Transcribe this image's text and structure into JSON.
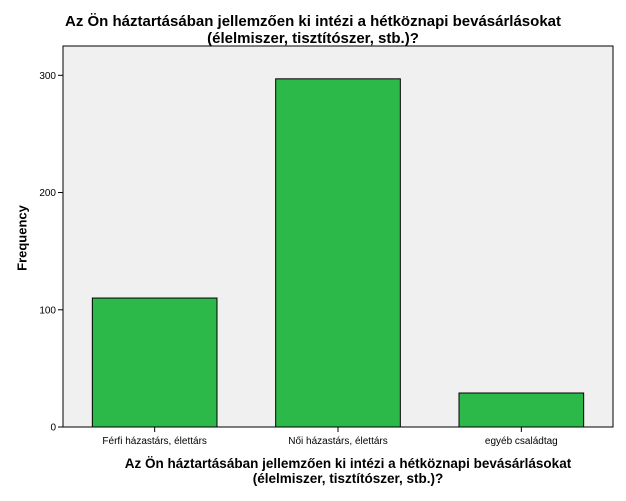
{
  "chart_data": {
    "type": "bar",
    "title_lines": [
      "Az Ön háztartásában jellemzően ki intézi a hétköznapi bevásárlásokat",
      "(élelmiszer, tisztítószer, stb.)?"
    ],
    "xlabel_lines": [
      "Az Ön háztartásában jellemzően ki intézi a hétköznapi bevásárlásokat",
      "(élelmiszer, tisztítószer, stb.)?"
    ],
    "ylabel": "Frequency",
    "categories": [
      "Férfi házastárs, élettárs",
      "Női házastárs, élettárs",
      "egyéb családtag"
    ],
    "values": [
      110,
      297,
      29
    ],
    "ylim": [
      0,
      325
    ],
    "yticks": [
      0,
      100,
      200,
      300
    ],
    "grid": false,
    "colors": {
      "bar": "#2db84a",
      "plot_bg": "#f0f0f0",
      "bar_edge": "#000000"
    }
  }
}
